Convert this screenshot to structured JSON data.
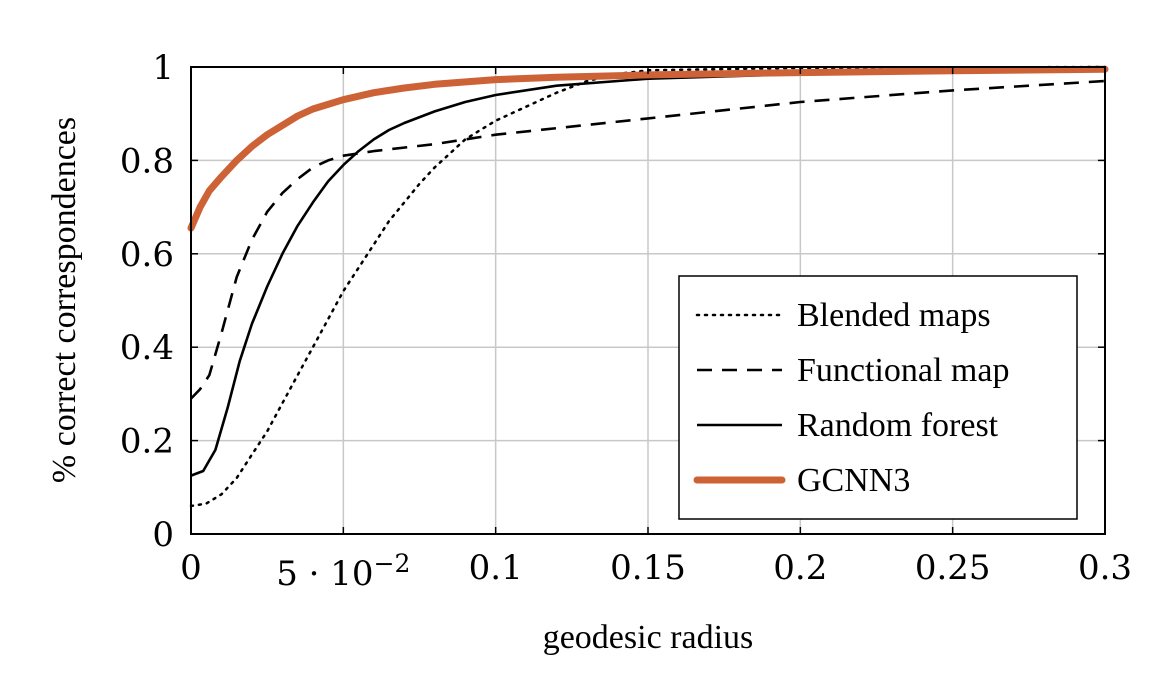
{
  "chart_data": {
    "type": "line",
    "xlabel": "geodesic radius",
    "ylabel": "% correct correspondences",
    "xlim": [
      0,
      0.3
    ],
    "ylim": [
      0,
      1
    ],
    "x_ticks": [
      {
        "value": 0,
        "label": "0"
      },
      {
        "value": 0.05,
        "label": "5 · 10",
        "exp": "−2"
      },
      {
        "value": 0.1,
        "label": "0.1"
      },
      {
        "value": 0.15,
        "label": "0.15"
      },
      {
        "value": 0.2,
        "label": "0.2"
      },
      {
        "value": 0.25,
        "label": "0.25"
      },
      {
        "value": 0.3,
        "label": "0.3"
      }
    ],
    "y_ticks": [
      {
        "value": 0,
        "label": "0"
      },
      {
        "value": 0.2,
        "label": "0.2"
      },
      {
        "value": 0.4,
        "label": "0.4"
      },
      {
        "value": 0.6,
        "label": "0.6"
      },
      {
        "value": 0.8,
        "label": "0.8"
      },
      {
        "value": 1,
        "label": "1"
      }
    ],
    "grid": true,
    "legend_position": "bottom-right",
    "series": [
      {
        "name": "Blended maps",
        "style": "dotted",
        "color": "#000000",
        "points": [
          [
            0,
            0.06
          ],
          [
            0.005,
            0.065
          ],
          [
            0.01,
            0.085
          ],
          [
            0.015,
            0.12
          ],
          [
            0.02,
            0.17
          ],
          [
            0.025,
            0.22
          ],
          [
            0.03,
            0.28
          ],
          [
            0.035,
            0.34
          ],
          [
            0.04,
            0.4
          ],
          [
            0.045,
            0.46
          ],
          [
            0.05,
            0.52
          ],
          [
            0.055,
            0.57
          ],
          [
            0.06,
            0.62
          ],
          [
            0.065,
            0.67
          ],
          [
            0.07,
            0.71
          ],
          [
            0.075,
            0.75
          ],
          [
            0.08,
            0.785
          ],
          [
            0.085,
            0.815
          ],
          [
            0.09,
            0.845
          ],
          [
            0.095,
            0.865
          ],
          [
            0.1,
            0.885
          ],
          [
            0.11,
            0.915
          ],
          [
            0.12,
            0.945
          ],
          [
            0.13,
            0.97
          ],
          [
            0.14,
            0.985
          ],
          [
            0.15,
            0.993
          ],
          [
            0.2,
            0.998
          ],
          [
            0.25,
            0.999
          ],
          [
            0.3,
            1.0
          ]
        ]
      },
      {
        "name": "Functional map",
        "style": "dashed",
        "color": "#000000",
        "points": [
          [
            0,
            0.29
          ],
          [
            0.003,
            0.31
          ],
          [
            0.006,
            0.34
          ],
          [
            0.01,
            0.43
          ],
          [
            0.015,
            0.55
          ],
          [
            0.02,
            0.63
          ],
          [
            0.025,
            0.69
          ],
          [
            0.03,
            0.73
          ],
          [
            0.035,
            0.76
          ],
          [
            0.04,
            0.785
          ],
          [
            0.045,
            0.8
          ],
          [
            0.05,
            0.81
          ],
          [
            0.06,
            0.82
          ],
          [
            0.08,
            0.835
          ],
          [
            0.1,
            0.855
          ],
          [
            0.15,
            0.89
          ],
          [
            0.2,
            0.925
          ],
          [
            0.25,
            0.95
          ],
          [
            0.3,
            0.97
          ]
        ]
      },
      {
        "name": "Random forest",
        "style": "solid",
        "color": "#000000",
        "points": [
          [
            0,
            0.125
          ],
          [
            0.004,
            0.135
          ],
          [
            0.008,
            0.18
          ],
          [
            0.012,
            0.27
          ],
          [
            0.016,
            0.37
          ],
          [
            0.02,
            0.45
          ],
          [
            0.025,
            0.53
          ],
          [
            0.03,
            0.6
          ],
          [
            0.035,
            0.66
          ],
          [
            0.04,
            0.71
          ],
          [
            0.045,
            0.755
          ],
          [
            0.05,
            0.79
          ],
          [
            0.055,
            0.82
          ],
          [
            0.06,
            0.845
          ],
          [
            0.065,
            0.865
          ],
          [
            0.07,
            0.88
          ],
          [
            0.08,
            0.905
          ],
          [
            0.09,
            0.925
          ],
          [
            0.1,
            0.94
          ],
          [
            0.12,
            0.96
          ],
          [
            0.15,
            0.975
          ],
          [
            0.2,
            0.985
          ],
          [
            0.25,
            0.99
          ],
          [
            0.3,
            0.995
          ]
        ]
      },
      {
        "name": "GCNN3",
        "style": "thick",
        "color": "#cc6236",
        "points": [
          [
            0,
            0.655
          ],
          [
            0.003,
            0.7
          ],
          [
            0.006,
            0.735
          ],
          [
            0.01,
            0.765
          ],
          [
            0.015,
            0.8
          ],
          [
            0.02,
            0.83
          ],
          [
            0.025,
            0.855
          ],
          [
            0.03,
            0.875
          ],
          [
            0.035,
            0.895
          ],
          [
            0.04,
            0.91
          ],
          [
            0.05,
            0.93
          ],
          [
            0.06,
            0.945
          ],
          [
            0.07,
            0.955
          ],
          [
            0.08,
            0.963
          ],
          [
            0.1,
            0.973
          ],
          [
            0.12,
            0.978
          ],
          [
            0.15,
            0.983
          ],
          [
            0.2,
            0.988
          ],
          [
            0.25,
            0.992
          ],
          [
            0.3,
            0.995
          ]
        ]
      }
    ]
  }
}
